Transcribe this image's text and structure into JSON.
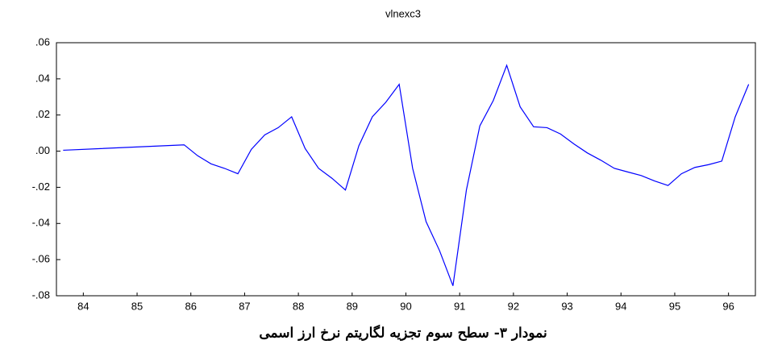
{
  "chart_data": {
    "type": "line",
    "title": "vlnexc3",
    "caption": "نمودار ۳- سطح سوم تجزیه لگاریتم نرخ ارز اسمی",
    "x": [
      84.125,
      86.375,
      86.625,
      86.875,
      87.125,
      87.375,
      87.625,
      87.875,
      88.125,
      88.375,
      88.625,
      88.875,
      89.125,
      89.375,
      89.625,
      89.875,
      90.125,
      90.375,
      90.625,
      90.875,
      91.125,
      91.375,
      91.625,
      91.875,
      92.125,
      92.375,
      92.625,
      92.875,
      93.125,
      93.375,
      93.625,
      93.875,
      94.125,
      94.375,
      94.625,
      94.875,
      95.125,
      95.375,
      95.625,
      95.875,
      96.125,
      96.375,
      96.625,
      96.875
    ],
    "series": [
      {
        "name": "vlnexc3",
        "color": "#0000ff",
        "values": [
          0.0005,
          0.0035,
          -0.0025,
          -0.007,
          -0.0095,
          -0.0125,
          0.001,
          0.009,
          0.013,
          0.019,
          0.0015,
          -0.0095,
          -0.015,
          -0.0215,
          0.003,
          0.019,
          0.027,
          0.037,
          -0.0095,
          -0.039,
          -0.055,
          -0.0745,
          -0.0215,
          0.014,
          0.028,
          0.0475,
          0.0245,
          0.0135,
          0.013,
          0.0095,
          0.004,
          -0.001,
          -0.005,
          -0.0095,
          -0.0115,
          -0.0135,
          -0.0165,
          -0.019,
          -0.0125,
          -0.009,
          -0.0075,
          -0.0055,
          0.019,
          0.037
        ]
      }
    ],
    "xlim": [
      84,
      97
    ],
    "xticks": [
      {
        "value": 84.5,
        "label": "84"
      },
      {
        "value": 85.5,
        "label": "85"
      },
      {
        "value": 86.5,
        "label": "86"
      },
      {
        "value": 87.5,
        "label": "87"
      },
      {
        "value": 88.5,
        "label": "88"
      },
      {
        "value": 89.5,
        "label": "89"
      },
      {
        "value": 90.5,
        "label": "90"
      },
      {
        "value": 91.5,
        "label": "91"
      },
      {
        "value": 92.5,
        "label": "92"
      },
      {
        "value": 93.5,
        "label": "93"
      },
      {
        "value": 94.5,
        "label": "94"
      },
      {
        "value": 95.5,
        "label": "95"
      },
      {
        "value": 96.5,
        "label": "96"
      }
    ],
    "ylim": [
      -0.08,
      0.06
    ],
    "yticks": [
      {
        "value": 0.06,
        "label": ".06"
      },
      {
        "value": 0.04,
        "label": ".04"
      },
      {
        "value": 0.02,
        "label": ".02"
      },
      {
        "value": 0,
        "label": ".00"
      },
      {
        "value": -0.02,
        "label": "-.02"
      },
      {
        "value": -0.04,
        "label": "-.04"
      },
      {
        "value": -0.06,
        "label": "-.06"
      },
      {
        "value": -0.08,
        "label": "-.08"
      }
    ],
    "grid": false
  }
}
